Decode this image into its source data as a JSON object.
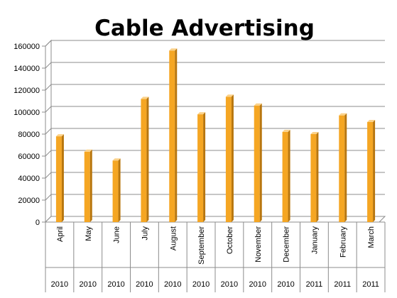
{
  "chart_data": {
    "type": "bar",
    "title": "Cable Advertising",
    "categories": [
      "April",
      "May",
      "June",
      "July",
      "August",
      "September",
      "October",
      "November",
      "December",
      "January",
      "February",
      "March"
    ],
    "years": [
      "2010",
      "2010",
      "2010",
      "2010",
      "2010",
      "2010",
      "2010",
      "2010",
      "2010",
      "2011",
      "2011",
      "2011"
    ],
    "values": [
      78000,
      64000,
      56000,
      112000,
      156000,
      98000,
      114000,
      106000,
      82000,
      80000,
      97000,
      91000
    ],
    "ylim": [
      0,
      160000
    ],
    "yticks": [
      "0",
      "20000",
      "40000",
      "60000",
      "80000",
      "100000",
      "120000",
      "140000",
      "160000"
    ],
    "grid": true,
    "legend": "none",
    "bar_color": "#F5A623",
    "bar_side_color": "#B8760E",
    "bar_top_color": "#FBD28A",
    "grid_color": "#8C8C8C"
  }
}
